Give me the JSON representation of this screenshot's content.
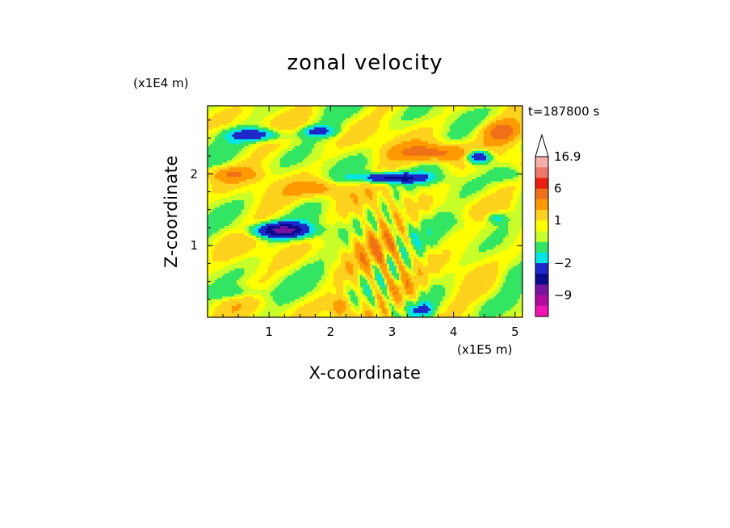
{
  "chart_data": {
    "type": "heatmap",
    "title": "zonal velocity",
    "xlabel": "X-coordinate",
    "ylabel": "Z-coordinate",
    "x_unit": "(x1E5 m)",
    "y_unit": "(x1E4 m)",
    "time_label": "t=187800 s",
    "xlim": [
      0,
      5.12
    ],
    "ylim": [
      0,
      2.95
    ],
    "x_ticks": [
      {
        "value": 1,
        "label": "1"
      },
      {
        "value": 2,
        "label": "2"
      },
      {
        "value": 3,
        "label": "3"
      },
      {
        "value": 4,
        "label": "4"
      },
      {
        "value": 5,
        "label": "5"
      }
    ],
    "y_ticks": [
      {
        "value": 1,
        "label": "1"
      },
      {
        "value": 2,
        "label": "2"
      }
    ],
    "colorbar": {
      "max_label": "16.9",
      "labels": [
        "16.9",
        "6",
        "1",
        "−2",
        "−9"
      ],
      "levels_top_to_bottom": [
        {
          "min": 12,
          "color": "#f4b0a8"
        },
        {
          "min": 9,
          "color": "#f07868"
        },
        {
          "min": 6,
          "color": "#e81e10"
        },
        {
          "min": 3.5,
          "color": "#f07018"
        },
        {
          "min": 2,
          "color": "#ff9a00"
        },
        {
          "min": 1,
          "color": "#ffd21e"
        },
        {
          "min": 0.5,
          "color": "#ffff00"
        },
        {
          "min": 0,
          "color": "#c8ff28"
        },
        {
          "min": -1,
          "color": "#32e664"
        },
        {
          "min": -2,
          "color": "#00e6e6"
        },
        {
          "min": -4,
          "color": "#1e28c8"
        },
        {
          "min": -6,
          "color": "#0a0a8c"
        },
        {
          "min": -9,
          "color": "#7814a0"
        },
        {
          "min": -12,
          "color": "#b40aa0"
        },
        {
          "min": -16,
          "color": "#f014b4"
        }
      ]
    },
    "features": [
      {
        "x": 1.2,
        "z": 1.22,
        "value": -7,
        "sx": 0.45,
        "sz": 0.1
      },
      {
        "x": 3.0,
        "z": 1.95,
        "value": -5.5,
        "sx": 0.55,
        "sz": 0.07
      },
      {
        "x": 4.4,
        "z": 2.25,
        "value": -6,
        "sx": 0.2,
        "sz": 0.1
      },
      {
        "x": 0.8,
        "z": 2.55,
        "value": -4,
        "sx": 0.45,
        "sz": 0.09
      },
      {
        "x": 1.8,
        "z": 2.6,
        "value": -3,
        "sx": 0.3,
        "sz": 0.08
      },
      {
        "x": 4.7,
        "z": 1.4,
        "value": -2.5,
        "sx": 0.15,
        "sz": 0.08
      },
      {
        "x": 3.7,
        "z": 2.3,
        "value": 4,
        "sx": 0.6,
        "sz": 0.12
      },
      {
        "x": 4.8,
        "z": 2.6,
        "value": 3.5,
        "sx": 0.3,
        "sz": 0.15
      },
      {
        "x": 0.4,
        "z": 2.0,
        "value": 2.5,
        "sx": 0.4,
        "sz": 0.1
      },
      {
        "x": 1.8,
        "z": 1.8,
        "value": 2.5,
        "sx": 0.4,
        "sz": 0.12
      },
      {
        "x": 2.8,
        "z": 1.0,
        "value": 2,
        "sx": 0.35,
        "sz": 0.25
      },
      {
        "x": 3.2,
        "z": 0.4,
        "value": 2,
        "sx": 0.3,
        "sz": 0.2
      },
      {
        "x": 2.15,
        "z": 0.15,
        "value": 3,
        "sx": 0.12,
        "sz": 0.12
      },
      {
        "x": 0.5,
        "z": 0.35,
        "value": -1.5,
        "sx": 0.5,
        "sz": 0.1
      },
      {
        "x": 3.5,
        "z": 0.1,
        "value": -2.5,
        "sx": 0.2,
        "sz": 0.1
      },
      {
        "x": 4.9,
        "z": 0.6,
        "value": -1,
        "sx": 0.3,
        "sz": 0.2
      },
      {
        "x": 4.3,
        "z": 1.3,
        "value": -1,
        "sx": 0.45,
        "sz": 0.15
      },
      {
        "x": 4.9,
        "z": 2.0,
        "value": -1.5,
        "sx": 0.25,
        "sz": 0.1
      }
    ]
  }
}
